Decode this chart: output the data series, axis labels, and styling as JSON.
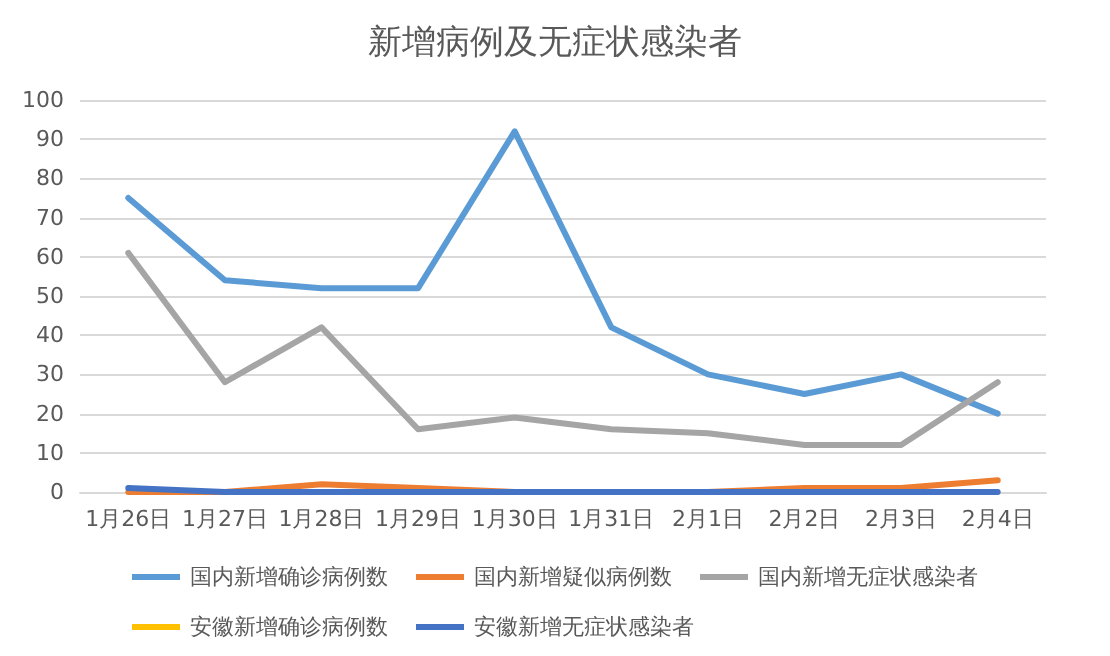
{
  "chart_data": {
    "type": "line",
    "title": "新增病例及无症状感染者",
    "categories": [
      "1月26日",
      "1月27日",
      "1月28日",
      "1月29日",
      "1月30日",
      "1月31日",
      "2月1日",
      "2月2日",
      "2月3日",
      "2月4日"
    ],
    "series": [
      {
        "name": "国内新增确诊病例数",
        "color": "#5b9bd5",
        "values": [
          75,
          54,
          52,
          52,
          92,
          42,
          30,
          25,
          30,
          20
        ]
      },
      {
        "name": "国内新增疑似病例数",
        "color": "#ed7d31",
        "values": [
          0,
          0,
          2,
          1,
          0,
          0,
          0,
          1,
          1,
          3
        ]
      },
      {
        "name": "国内新增无症状感染者",
        "color": "#a5a5a5",
        "values": [
          61,
          28,
          42,
          16,
          19,
          16,
          15,
          12,
          12,
          28
        ]
      },
      {
        "name": "安徽新增确诊病例数",
        "color": "#ffc000",
        "values": [
          null,
          null,
          null,
          null,
          null,
          null,
          null,
          null,
          null,
          null
        ]
      },
      {
        "name": "安徽新增无症状感染者",
        "color": "#4472c4",
        "values": [
          1,
          0,
          0,
          0,
          0,
          0,
          0,
          0,
          0,
          0
        ]
      }
    ],
    "ylim": [
      0,
      100
    ],
    "yticks": [
      0,
      10,
      20,
      30,
      40,
      50,
      60,
      70,
      80,
      90,
      100
    ],
    "grid": "y",
    "legend": "bottom",
    "marker": "none",
    "line_style": "solid"
  }
}
